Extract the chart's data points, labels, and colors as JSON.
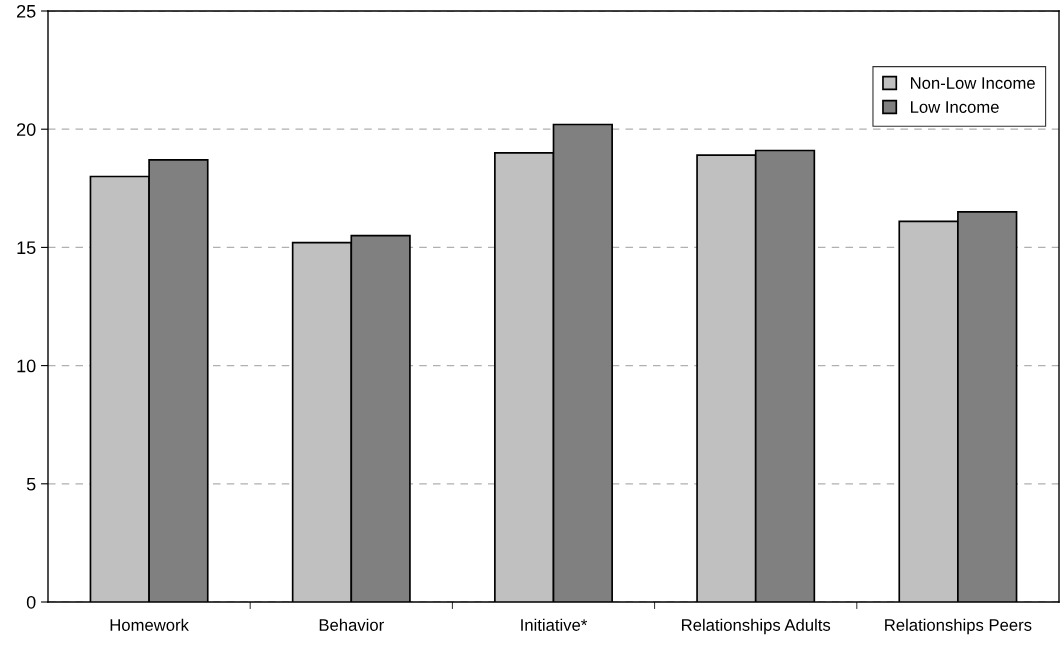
{
  "chart_data": {
    "type": "bar",
    "categories": [
      "Homework",
      "Behavior",
      "Initiative*",
      "Relationships Adults",
      "Relationships Peers"
    ],
    "series": [
      {
        "name": "Non-Low Income",
        "color": "#c0c0c0",
        "values": [
          18.0,
          15.2,
          19.0,
          18.9,
          16.1
        ]
      },
      {
        "name": "Low Income",
        "color": "#808080",
        "values": [
          18.7,
          15.5,
          20.2,
          19.1,
          16.5
        ]
      }
    ],
    "ylim": [
      0,
      25
    ],
    "yticks": [
      0,
      5,
      10,
      15,
      20,
      25
    ],
    "grid": "y",
    "legend": "top right"
  }
}
